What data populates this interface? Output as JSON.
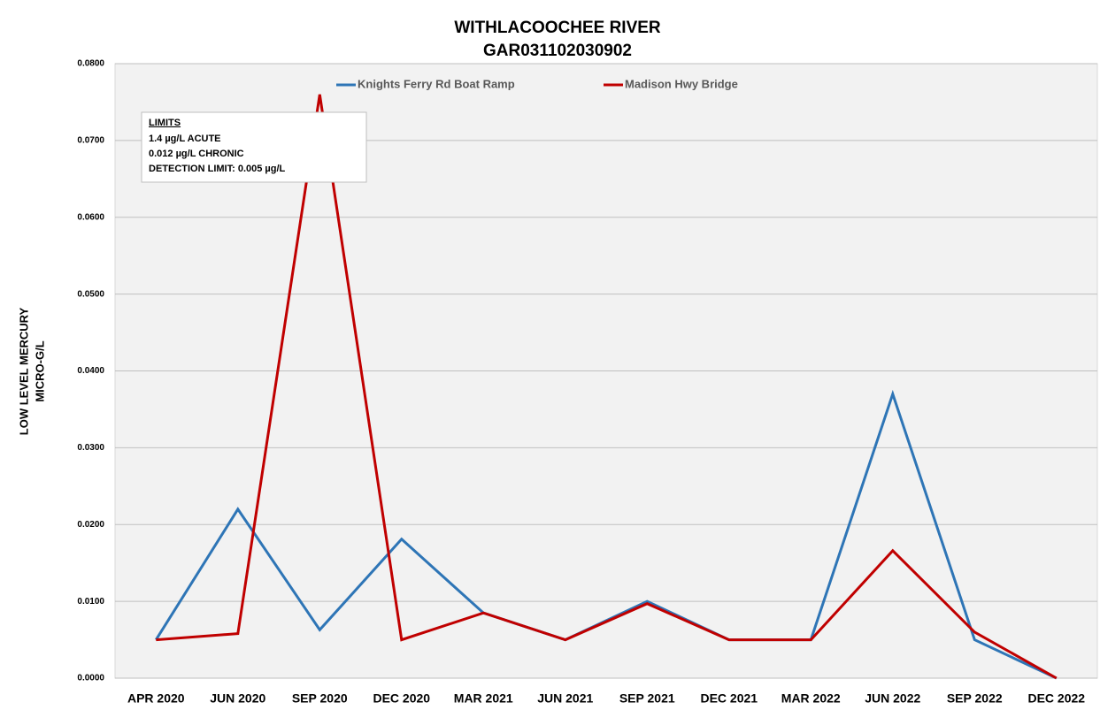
{
  "chart_data": {
    "type": "line",
    "title": [
      "WITHLACOOCHEE RIVER",
      "GAR031102030902"
    ],
    "y_label": [
      "LOW LEVEL MERCURY",
      "MICRO-G/L"
    ],
    "annotation": {
      "title": "LIMITS",
      "lines": [
        "1.4 µg/L ACUTE",
        "0.012 µg/L CHRONIC",
        "DETECTION LIMIT: 0.005 µg/L"
      ]
    },
    "categories": [
      "APR 2020",
      "JUN 2020",
      "SEP 2020",
      "DEC 2020",
      "MAR 2021",
      "JUN 2021",
      "SEP 2021",
      "DEC 2021",
      "MAR 2022",
      "JUN 2022",
      "SEP 2022",
      "DEC 2022"
    ],
    "series": [
      {
        "name": "Knights Ferry Rd Boat Ramp",
        "color": "#2e75b6",
        "values": [
          0.005,
          0.022,
          0.0063,
          0.0181,
          0.0085,
          0.005,
          0.01,
          0.005,
          0.005,
          0.037,
          0.005,
          0.0
        ]
      },
      {
        "name": "Madison Hwy Bridge",
        "color": "#c00000",
        "values": [
          0.005,
          0.0058,
          0.076,
          0.005,
          0.0085,
          0.005,
          0.0097,
          0.005,
          0.005,
          0.0166,
          0.006,
          0.0
        ]
      }
    ],
    "ylim": [
      0,
      0.08
    ],
    "yticks": [
      {
        "value": 0,
        "label": "0.0000"
      },
      {
        "value": 0.01,
        "label": "0.0100"
      },
      {
        "value": 0.02,
        "label": "0.0200"
      },
      {
        "value": 0.03,
        "label": "0.0300"
      },
      {
        "value": 0.04,
        "label": "0.0400"
      },
      {
        "value": 0.05,
        "label": "0.0500"
      },
      {
        "value": 0.06,
        "label": "0.0600"
      },
      {
        "value": 0.07,
        "label": "0.0700"
      },
      {
        "value": 0.08,
        "label": "0.0800"
      }
    ],
    "grid": true,
    "legend": "top"
  }
}
